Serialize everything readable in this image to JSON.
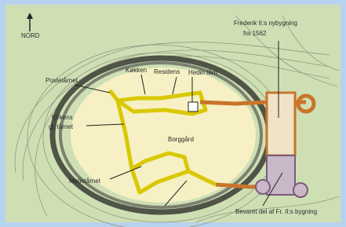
{
  "compass": {
    "label": "NORD"
  },
  "labels": {
    "new_building": [
      "Frederik II:s nybygning",
      "fra 1562"
    ],
    "post_tower": "Postetårnet",
    "kitchen": "Køkken",
    "residence": "Residens",
    "hedin_tower": "Hedin tårn",
    "church": [
      "Kirkens",
      "gl. tårnet"
    ],
    "courtyard": "Borggård",
    "mill_tower": "Mølletårnet",
    "preserved": "Bevaret del af Fr. II:s bygning"
  }
}
